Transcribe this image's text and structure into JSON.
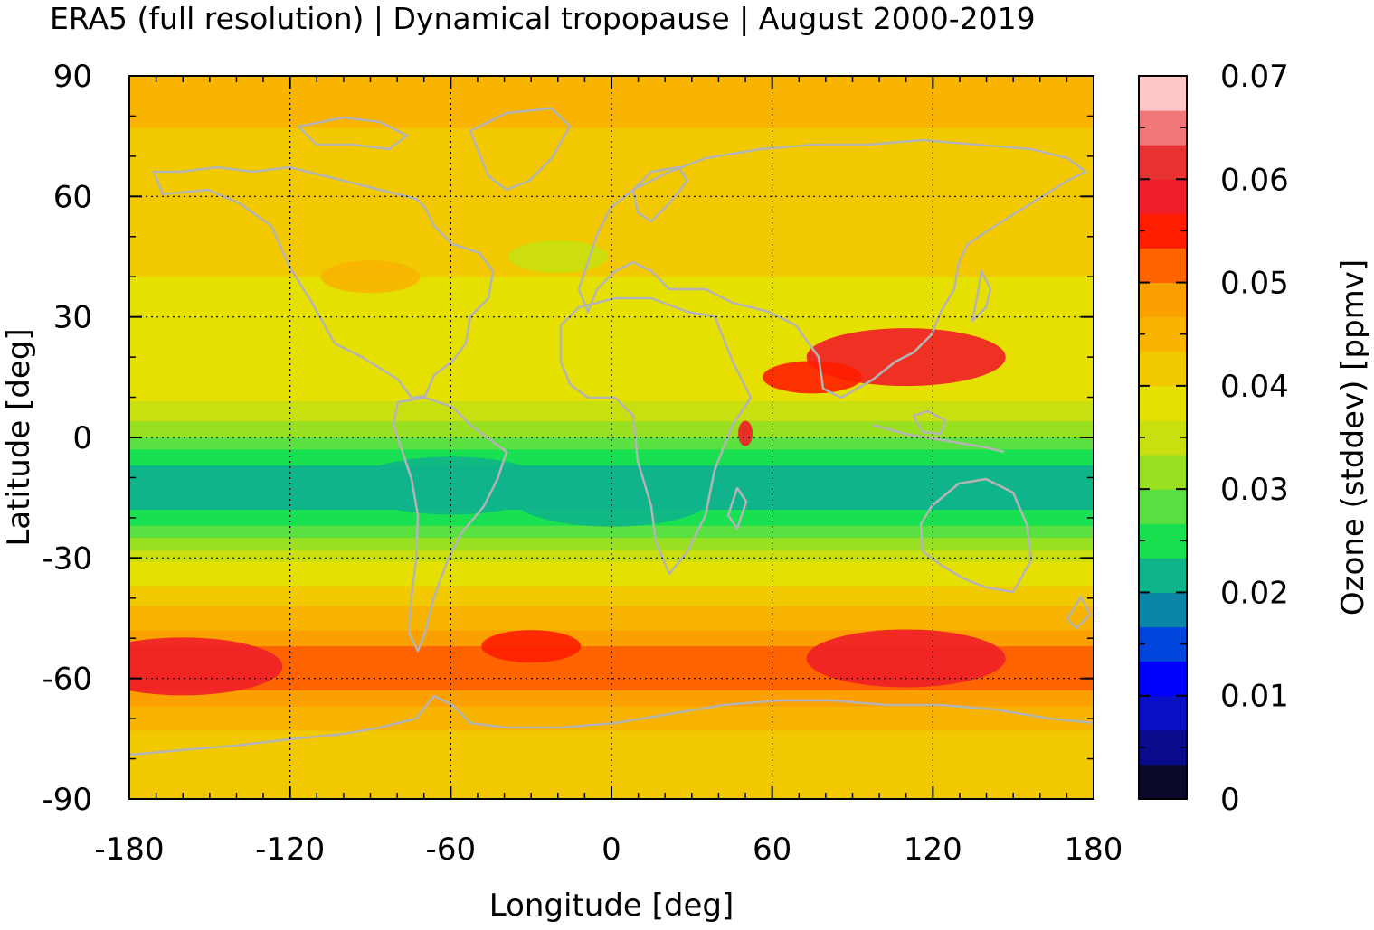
{
  "chart_data": {
    "type": "heatmap",
    "title": "ERA5 (full resolution) | Dynamical tropopause | August 2000-2019",
    "xlabel": "Longitude [deg]",
    "ylabel": "Latitude [deg]",
    "colorbar_label": "Ozone (stddev) [ppmv]",
    "xlim": [
      -180,
      180
    ],
    "ylim": [
      -90,
      90
    ],
    "clim": [
      0,
      0.07
    ],
    "x_ticks": [
      "-180",
      "-120",
      "-60",
      "0",
      "60",
      "120",
      "180"
    ],
    "x_tick_values": [
      -180,
      -120,
      -60,
      0,
      60,
      120,
      180
    ],
    "y_ticks": [
      "-90",
      "-60",
      "-30",
      "0",
      "30",
      "60",
      "90"
    ],
    "y_tick_values": [
      -90,
      -60,
      -30,
      0,
      30,
      60,
      90
    ],
    "colorbar_ticks": [
      "0",
      "0.01",
      "0.02",
      "0.03",
      "0.04",
      "0.05",
      "0.06",
      "0.07"
    ],
    "colorbar_tick_values": [
      0,
      0.01,
      0.02,
      0.03,
      0.04,
      0.05,
      0.06,
      0.07
    ],
    "grid": true,
    "overlay": "coastlines",
    "palette": [
      "#0a0a28",
      "#0a0a8c",
      "#0a10c8",
      "#0000ff",
      "#0046dc",
      "#0b86a8",
      "#10b48a",
      "#18e050",
      "#5ae040",
      "#98e020",
      "#c8e010",
      "#e6e000",
      "#f2c800",
      "#f8b400",
      "#faa000",
      "#ff6400",
      "#ff1e00",
      "#f01e28",
      "#e83232",
      "#f07878",
      "#ffc8c8"
    ],
    "zonal_profile_lat": [
      90,
      80,
      70,
      60,
      50,
      40,
      30,
      20,
      10,
      5,
      0,
      -5,
      -10,
      -15,
      -20,
      -25,
      -30,
      -40,
      -50,
      -55,
      -60,
      -65,
      -70,
      -80,
      -90
    ],
    "zonal_profile_value": [
      0.046,
      0.044,
      0.042,
      0.041,
      0.041,
      0.04,
      0.038,
      0.039,
      0.037,
      0.034,
      0.03,
      0.025,
      0.021,
      0.021,
      0.025,
      0.03,
      0.036,
      0.042,
      0.048,
      0.052,
      0.053,
      0.048,
      0.044,
      0.042,
      0.042
    ],
    "anomalies": [
      {
        "lon": 110,
        "lat": 20,
        "value": 0.058
      },
      {
        "lon": 75,
        "lat": 15,
        "value": 0.054
      },
      {
        "lon": -30,
        "lat": -52,
        "value": 0.054
      },
      {
        "lon": -160,
        "lat": -57,
        "value": 0.058
      },
      {
        "lon": 110,
        "lat": -55,
        "value": 0.059
      },
      {
        "lon": 50,
        "lat": 1,
        "value": 0.06
      },
      {
        "lon": 0,
        "lat": -15,
        "value": 0.02
      },
      {
        "lon": -60,
        "lat": -12,
        "value": 0.021
      },
      {
        "lon": -90,
        "lat": 40,
        "value": 0.046
      },
      {
        "lon": -20,
        "lat": 45,
        "value": 0.034
      }
    ]
  }
}
